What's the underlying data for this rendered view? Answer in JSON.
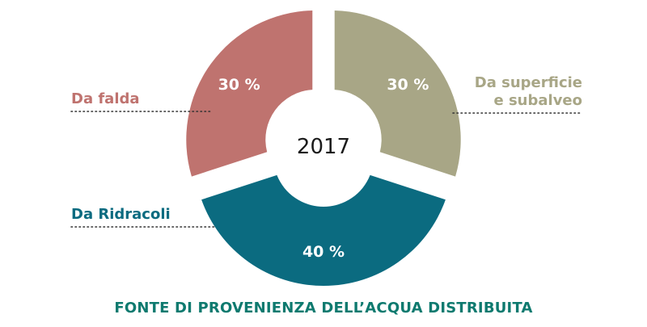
{
  "chart_data": {
    "type": "pie",
    "title": "FONTE DI PROVENIENZA DELL’ACQUA DISTRIBUITA",
    "center_label": "2017",
    "slices": [
      {
        "name": "Da superficie e subalveo",
        "name_lines": [
          "Da superficie",
          "e subalveo"
        ],
        "value": 30,
        "value_label": "30 %",
        "color": "#a8a686"
      },
      {
        "name": "Da Ridracoli",
        "name_lines": [
          "Da Ridracoli"
        ],
        "value": 40,
        "value_label": "40 %",
        "color": "#0b6b80"
      },
      {
        "name": "Da falda",
        "name_lines": [
          "Da falda"
        ],
        "value": 30,
        "value_label": "30 %",
        "color": "#bf736f"
      }
    ]
  }
}
